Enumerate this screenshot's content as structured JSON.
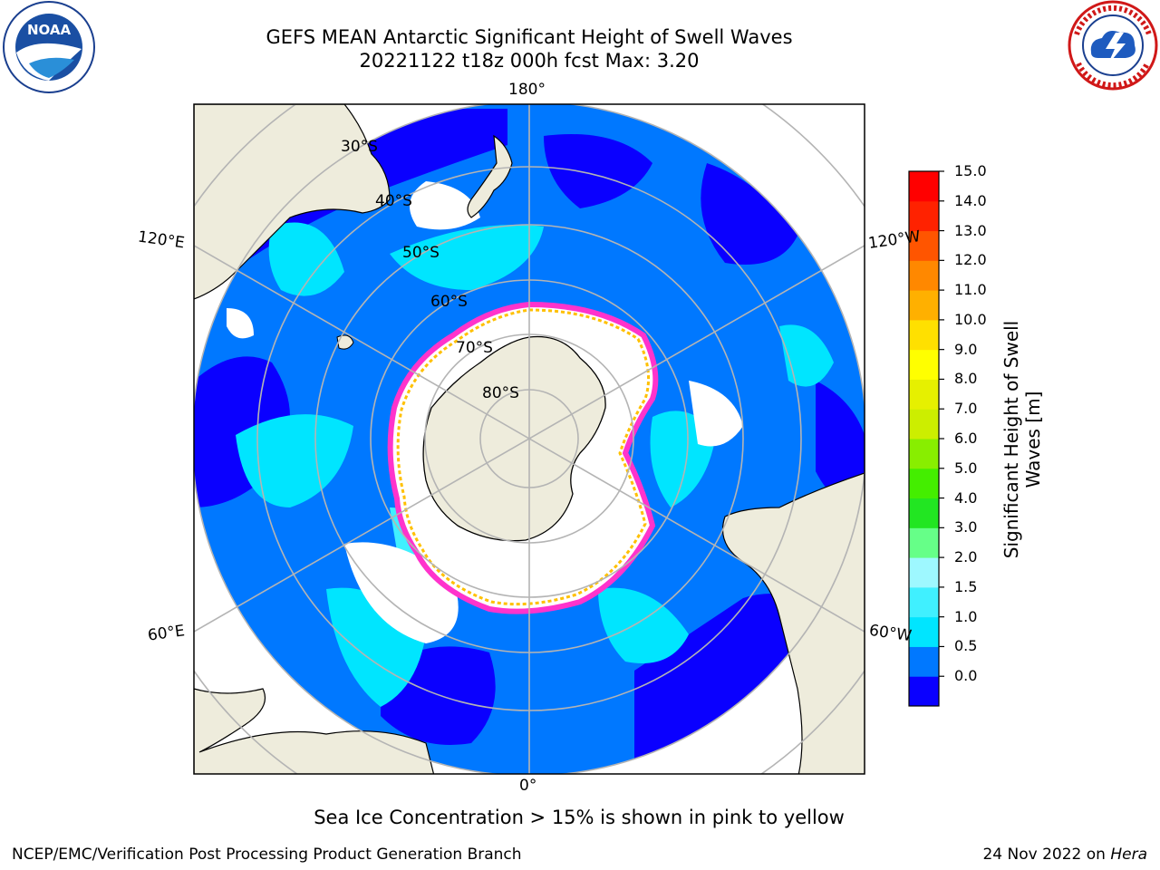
{
  "title": {
    "line1": "GEFS MEAN Antarctic Significant Height of Swell Waves",
    "line2": "20221122 t18z 000h fcst   Max: 3.20"
  },
  "logos": {
    "left": "NOAA",
    "right": "NATIONAL WEATHER SERVICE"
  },
  "map": {
    "projection": "south polar stereographic",
    "longitude_labels": [
      "180°",
      "120°E",
      "120°W",
      "60°E",
      "60°W",
      "0°"
    ],
    "latitude_labels": [
      "30°S",
      "40°S",
      "50°S",
      "60°S",
      "70°S",
      "80°S"
    ],
    "colors": {
      "ocean_low": "#0a00ff",
      "ocean_mid": "#0078ff",
      "ocean_high": "#00e5ff",
      "land": "#eeecdc",
      "sea_ice": "#ffffff",
      "ice_edge": "#ff33cc",
      "gridline": "#b4b4b4"
    }
  },
  "colorbar": {
    "label_line1": "Significant Height of Swell",
    "label_line2": "Waves [m]",
    "ticks": [
      "15.0",
      "14.0",
      "13.0",
      "12.0",
      "11.0",
      "10.0",
      "9.0",
      "8.0",
      "7.0",
      "6.0",
      "5.0",
      "4.0",
      "3.0",
      "2.0",
      "1.5",
      "1.0",
      "0.5",
      "0.0"
    ],
    "colors_bottom_to_top": [
      "#0a00ff",
      "#0078ff",
      "#00e5ff",
      "#40f0ff",
      "#9ef8ff",
      "#66ff88",
      "#22e622",
      "#44ee00",
      "#88ee00",
      "#ccee00",
      "#e6f000",
      "#ffff00",
      "#ffe000",
      "#ffb000",
      "#ff8800",
      "#ff5500",
      "#ff2200",
      "#ff0000"
    ]
  },
  "caption": "Sea Ice Concentration > 15% is shown in pink to yellow",
  "footer": {
    "left": "NCEP/EMC/Verification Post Processing Product Generation Branch",
    "right_date": "24 Nov 2022 on ",
    "right_system": "Hera"
  }
}
